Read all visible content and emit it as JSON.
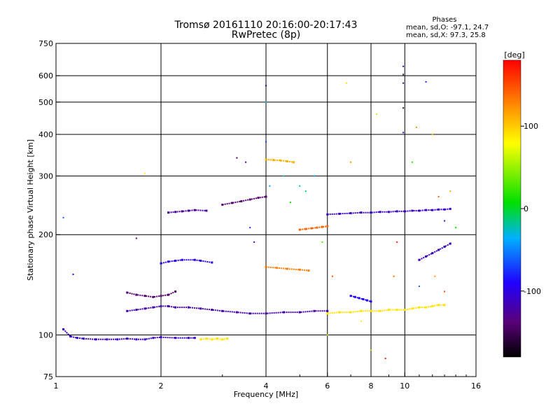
{
  "title_line1": "Tromsø 20161110 20:16:00-20:17:43",
  "title_line2": "RwPretec (8p)",
  "phases": {
    "header": "Phases",
    "o_line": "mean, sd,O: -97.1, 24.7",
    "x_line": "mean, sd,X:  97.3, 25.8"
  },
  "colorbar": {
    "unit_label": "[deg]",
    "ticks": [
      {
        "value": 100,
        "label": "100"
      },
      {
        "value": 0,
        "label": "0"
      },
      {
        "value": -100,
        "label": "-100"
      }
    ],
    "range": [
      -180,
      180
    ]
  },
  "chart_data": {
    "type": "scatter",
    "xlabel": "Frequency [MHz]",
    "ylabel": "Stationary phase Virtual Height [km]",
    "xscale": "log",
    "yscale": "log",
    "xlim": [
      1,
      16
    ],
    "ylim": [
      75,
      750
    ],
    "x_ticks": [
      {
        "value": 1,
        "label": "1"
      },
      {
        "value": 2,
        "label": "2"
      },
      {
        "value": 4,
        "label": "4"
      },
      {
        "value": 6,
        "label": "6"
      },
      {
        "value": 8,
        "label": "8"
      },
      {
        "value": 10,
        "label": "10"
      },
      {
        "value": 16,
        "label": "16"
      }
    ],
    "y_ticks": [
      {
        "value": 75,
        "label": "75"
      },
      {
        "value": 100,
        "label": "100"
      },
      {
        "value": 200,
        "label": "200"
      },
      {
        "value": 300,
        "label": "300"
      },
      {
        "value": 400,
        "label": "400"
      },
      {
        "value": 500,
        "label": "500"
      },
      {
        "value": 600,
        "label": "600"
      },
      {
        "value": 750,
        "label": "750"
      }
    ],
    "x_grid": [
      2,
      4,
      6,
      8,
      10
    ],
    "y_grid": [
      100,
      200,
      300,
      400,
      500,
      600
    ],
    "grid": true,
    "color_encoding": "phase [deg]",
    "traces": [
      {
        "x": [
          1.05,
          1.1,
          1.15,
          1.2,
          1.3,
          1.4,
          1.5,
          1.6,
          1.7,
          1.8,
          1.9,
          2.0,
          2.2,
          2.4,
          2.5
        ],
        "y": [
          104,
          99,
          98,
          97.5,
          97,
          97,
          97,
          97.5,
          97,
          97,
          98,
          98.5,
          98,
          98,
          98
        ],
        "phase": -110
      },
      {
        "x": [
          2.6,
          2.7,
          2.8,
          2.9,
          3.0,
          3.1
        ],
        "y": [
          97,
          97.5,
          97,
          97.5,
          97,
          97.5
        ],
        "phase": 90
      },
      {
        "x": [
          1.6,
          1.7,
          1.8,
          1.9,
          2.0,
          2.1,
          2.2,
          2.4,
          2.6,
          2.8,
          3.0,
          3.3,
          3.6,
          4.0,
          4.5,
          5.0,
          5.5,
          6.0
        ],
        "y": [
          118,
          119,
          120,
          121,
          122,
          122,
          121,
          121,
          120,
          119,
          118,
          117,
          116,
          116,
          117,
          117,
          118,
          118
        ],
        "phase": -120
      },
      {
        "x": [
          1.6,
          1.7,
          1.8,
          1.9,
          2.0,
          2.1,
          2.2
        ],
        "y": [
          134,
          132,
          131,
          130,
          131,
          132,
          135
        ],
        "phase": -140
      },
      {
        "x": [
          2.0,
          2.1,
          2.2,
          2.3,
          2.5,
          2.6,
          2.8
        ],
        "y": [
          164,
          166,
          167,
          168,
          168,
          167,
          165
        ],
        "phase": -100
      },
      {
        "x": [
          2.1,
          2.2,
          2.3,
          2.4,
          2.5,
          2.7
        ],
        "y": [
          233,
          234,
          235,
          236,
          237,
          236
        ],
        "phase": -125
      },
      {
        "x": [
          3.0,
          3.2,
          3.4,
          3.6,
          3.8,
          4.0
        ],
        "y": [
          246,
          249,
          252,
          255,
          258,
          260
        ],
        "phase": -140
      },
      {
        "x": [
          6.0,
          6.5,
          7.0,
          7.5,
          8.0,
          8.5,
          9.0,
          9.5,
          10.0,
          10.5,
          11.0,
          11.5,
          12.0,
          12.5,
          13.0
        ],
        "y": [
          116,
          117,
          117,
          118,
          118,
          118,
          119,
          119,
          119,
          120,
          121,
          121,
          122,
          123,
          123
        ],
        "phase": 90
      },
      {
        "x": [
          6.0,
          6.5,
          7.0,
          7.5,
          8.0,
          8.5,
          9.0,
          9.5,
          10.0,
          10.5,
          11.0,
          11.5,
          12.0,
          12.5,
          13.0,
          13.5
        ],
        "y": [
          230,
          231,
          232,
          233,
          233,
          234,
          234,
          235,
          235,
          236,
          236,
          237,
          237,
          238,
          238,
          239
        ],
        "phase": -110
      },
      {
        "x": [
          11.0,
          11.5,
          12.0,
          12.5,
          13.0,
          13.5
        ],
        "y": [
          168,
          172,
          176,
          180,
          184,
          188
        ],
        "phase": -115
      },
      {
        "x": [
          4.0,
          4.2,
          4.4,
          4.6,
          4.8
        ],
        "y": [
          336,
          335,
          334,
          332,
          330
        ],
        "phase": 110
      },
      {
        "x": [
          5.0,
          5.2,
          5.4,
          5.6,
          5.8,
          6.0
        ],
        "y": [
          207,
          208,
          209,
          210,
          211,
          212
        ],
        "phase": 140
      },
      {
        "x": [
          4.0,
          4.3,
          4.6,
          5.0,
          5.3
        ],
        "y": [
          160,
          159,
          158,
          157,
          156
        ],
        "phase": 130
      },
      {
        "x": [
          7.0,
          7.2,
          7.4,
          7.6,
          7.8,
          8.0
        ],
        "y": [
          131,
          130,
          129,
          128,
          127,
          126
        ],
        "phase": -90
      }
    ],
    "scatter_points": [
      {
        "x": 1.12,
        "y": 152,
        "phase": -100
      },
      {
        "x": 1.05,
        "y": 225,
        "phase": -60
      },
      {
        "x": 1.7,
        "y": 195,
        "phase": -140
      },
      {
        "x": 1.8,
        "y": 305,
        "phase": 80
      },
      {
        "x": 3.3,
        "y": 340,
        "phase": -150
      },
      {
        "x": 3.5,
        "y": 330,
        "phase": -130
      },
      {
        "x": 3.6,
        "y": 210,
        "phase": -80
      },
      {
        "x": 3.7,
        "y": 190,
        "phase": -120
      },
      {
        "x": 4.0,
        "y": 560,
        "phase": -120
      },
      {
        "x": 4.0,
        "y": 500,
        "phase": -30
      },
      {
        "x": 4.0,
        "y": 380,
        "phase": -70
      },
      {
        "x": 4.1,
        "y": 280,
        "phase": -40
      },
      {
        "x": 4.5,
        "y": 300,
        "phase": -20
      },
      {
        "x": 4.7,
        "y": 250,
        "phase": 10
      },
      {
        "x": 5.0,
        "y": 280,
        "phase": -20
      },
      {
        "x": 5.2,
        "y": 270,
        "phase": -10
      },
      {
        "x": 5.5,
        "y": 300,
        "phase": -40
      },
      {
        "x": 5.8,
        "y": 190,
        "phase": 30
      },
      {
        "x": 6.0,
        "y": 100,
        "phase": 60
      },
      {
        "x": 6.2,
        "y": 150,
        "phase": 150
      },
      {
        "x": 6.8,
        "y": 570,
        "phase": 90
      },
      {
        "x": 7.0,
        "y": 330,
        "phase": 120
      },
      {
        "x": 7.5,
        "y": 110,
        "phase": 80
      },
      {
        "x": 8.0,
        "y": 90,
        "phase": 50
      },
      {
        "x": 8.3,
        "y": 460,
        "phase": 60
      },
      {
        "x": 8.8,
        "y": 85,
        "phase": 170
      },
      {
        "x": 9.3,
        "y": 150,
        "phase": 140
      },
      {
        "x": 9.5,
        "y": 190,
        "phase": 170
      },
      {
        "x": 9.9,
        "y": 640,
        "phase": -120
      },
      {
        "x": 9.9,
        "y": 605,
        "phase": -140
      },
      {
        "x": 9.9,
        "y": 570,
        "phase": -130
      },
      {
        "x": 9.9,
        "y": 480,
        "phase": -150
      },
      {
        "x": 9.9,
        "y": 405,
        "phase": -90
      },
      {
        "x": 10.5,
        "y": 330,
        "phase": 20
      },
      {
        "x": 10.8,
        "y": 420,
        "phase": 120
      },
      {
        "x": 11.5,
        "y": 575,
        "phase": -80
      },
      {
        "x": 12.0,
        "y": 400,
        "phase": 100
      },
      {
        "x": 12.5,
        "y": 260,
        "phase": 140
      },
      {
        "x": 13.0,
        "y": 220,
        "phase": -110
      },
      {
        "x": 13.5,
        "y": 270,
        "phase": 110
      },
      {
        "x": 14.0,
        "y": 210,
        "phase": 10
      },
      {
        "x": 13.0,
        "y": 135,
        "phase": 150
      },
      {
        "x": 12.2,
        "y": 150,
        "phase": 120
      },
      {
        "x": 11.0,
        "y": 140,
        "phase": -60
      }
    ]
  }
}
